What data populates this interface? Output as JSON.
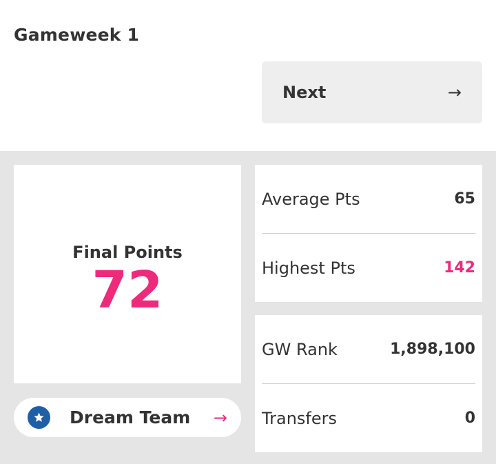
{
  "header": {
    "title": "Gameweek 1"
  },
  "nav": {
    "next_label": "Next",
    "next_icon": "arrow-right-icon"
  },
  "final_points": {
    "label": "Final Points",
    "value": "72"
  },
  "dream_team": {
    "label": "Dream Team",
    "icon": "star-icon",
    "arrow_icon": "arrow-right-icon"
  },
  "stats_top": [
    {
      "label": "Average Pts",
      "value": "65"
    },
    {
      "label": "Highest Pts",
      "value": "142"
    }
  ],
  "stats_bottom": [
    {
      "label": "GW Rank",
      "value": "1,898,100"
    },
    {
      "label": "Transfers",
      "value": "0"
    }
  ],
  "colors": {
    "accent": "#ee2a7b",
    "star_badge": "#1f5fa8",
    "panel_bg": "#e5e5e5",
    "button_bg": "#eeeeee"
  }
}
